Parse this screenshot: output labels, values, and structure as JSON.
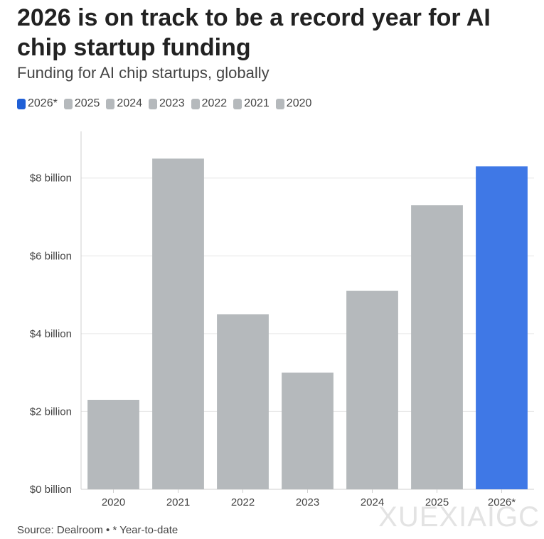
{
  "header": {
    "title": "2026 is on track to be a record year for AI chip startup funding",
    "subtitle": "Funding for AI chip startups, globally"
  },
  "legend": [
    {
      "label": "2026*",
      "color": "#1f5fd6"
    },
    {
      "label": "2025",
      "color": "#b5b9bc"
    },
    {
      "label": "2024",
      "color": "#b5b9bc"
    },
    {
      "label": "2023",
      "color": "#b5b9bc"
    },
    {
      "label": "2022",
      "color": "#b5b9bc"
    },
    {
      "label": "2021",
      "color": "#b5b9bc"
    },
    {
      "label": "2020",
      "color": "#b5b9bc"
    }
  ],
  "chart_data": {
    "type": "bar",
    "title": "2026 is on track to be a record year for AI chip startup funding",
    "subtitle": "Funding for AI chip startups, globally",
    "categories": [
      "2020",
      "2021",
      "2022",
      "2023",
      "2024",
      "2025",
      "2026*"
    ],
    "values": [
      2.3,
      8.5,
      4.5,
      3.0,
      5.1,
      7.3,
      8.3
    ],
    "colors": [
      "#b5b9bc",
      "#b5b9bc",
      "#b5b9bc",
      "#b5b9bc",
      "#b5b9bc",
      "#b5b9bc",
      "#3f78e6"
    ],
    "unit": "billion USD",
    "yticks": [
      0,
      2,
      4,
      6,
      8
    ],
    "ytick_labels": [
      "$0 billion",
      "$2 billion",
      "$4 billion",
      "$6 billion",
      "$8 billion"
    ],
    "ylim": [
      0,
      9.2
    ],
    "xlabel": "",
    "ylabel": "",
    "grid": true
  },
  "footer": {
    "source": "Source: Dealroom • * Year-to-date"
  },
  "watermark": "XUEXIAIGC"
}
